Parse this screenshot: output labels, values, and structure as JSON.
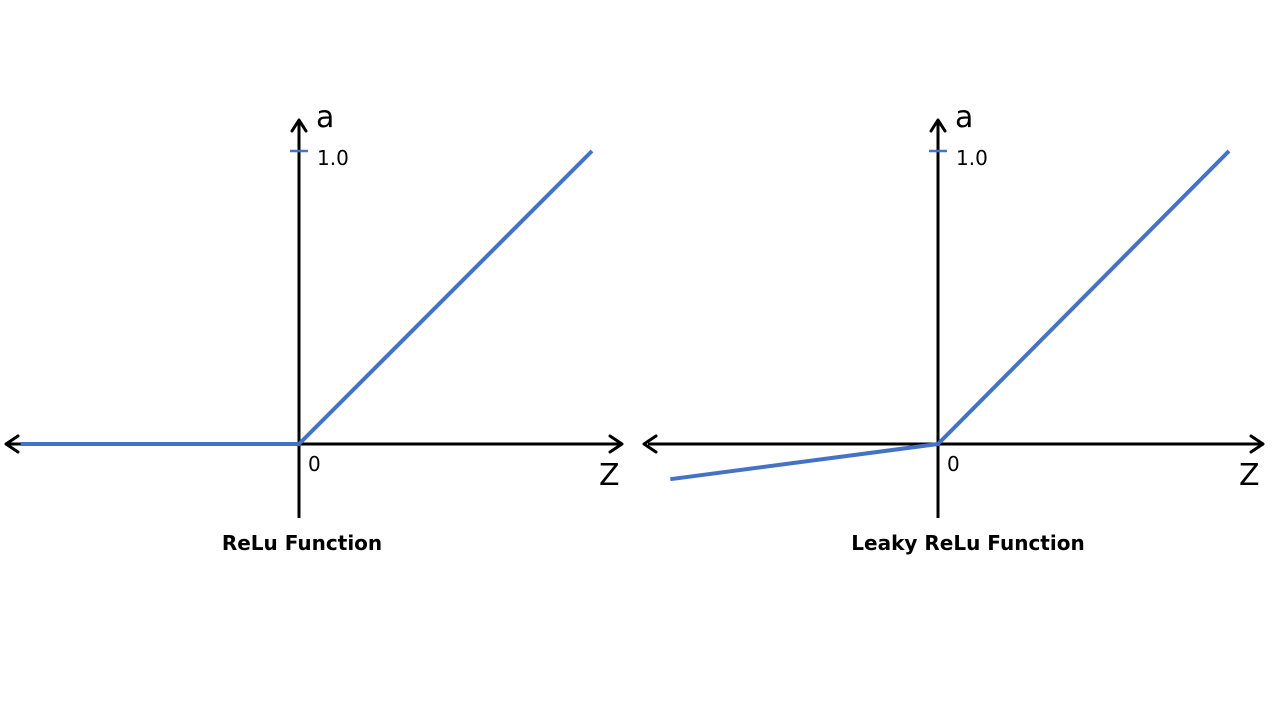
{
  "colors": {
    "axis": "#000000",
    "line": "#4472C4",
    "background": "#FFFFFF"
  },
  "chart_data": [
    {
      "type": "line",
      "title": "ReLu Function",
      "xlabel": "Z",
      "ylabel": "a",
      "x_tick_labels": [
        "0"
      ],
      "y_tick_labels": [
        "1.0"
      ],
      "xlim": [
        -1.0,
        1.0
      ],
      "ylim": [
        -0.25,
        1.0
      ],
      "grid": false,
      "legend": "none",
      "series": [
        {
          "points": [
            [
              -0.95,
              0.0
            ],
            [
              0.0,
              0.0
            ],
            [
              1.0,
              1.0
            ]
          ]
        }
      ]
    },
    {
      "type": "line",
      "title": "Leaky ReLu Function",
      "xlabel": "Z",
      "ylabel": "a",
      "x_tick_labels": [
        "0"
      ],
      "y_tick_labels": [
        "1.0"
      ],
      "xlim": [
        -1.0,
        1.0
      ],
      "ylim": [
        -0.25,
        1.0
      ],
      "grid": false,
      "legend": "none",
      "series": [
        {
          "points": [
            [
              -0.92,
              -0.12
            ],
            [
              0.0,
              0.0
            ],
            [
              1.0,
              1.0
            ]
          ]
        }
      ]
    }
  ]
}
